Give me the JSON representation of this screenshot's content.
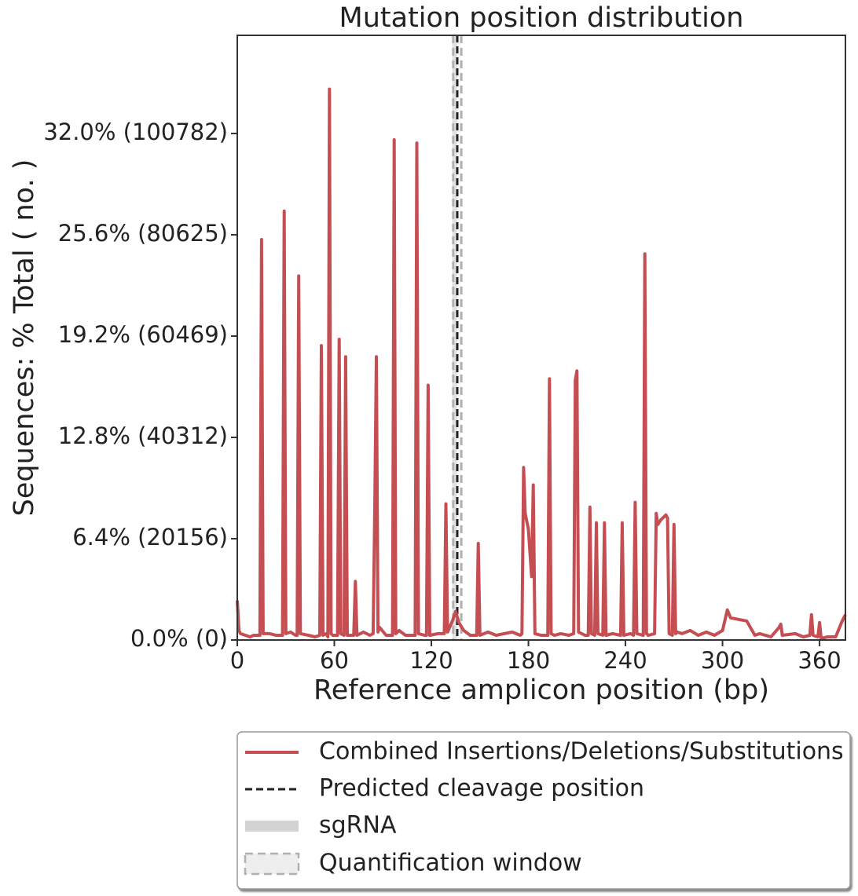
{
  "chart_data": {
    "type": "line",
    "title": "Mutation position distribution",
    "xlabel": "Reference amplicon position (bp)",
    "ylabel": "Sequences: % Total ( no. )",
    "x": [
      0,
      1,
      2,
      5,
      8,
      10,
      14,
      15,
      16,
      20,
      24,
      28,
      29,
      30,
      33,
      36,
      37,
      38,
      39,
      44,
      48,
      51,
      52,
      53,
      55,
      56,
      57,
      58,
      59,
      62,
      63,
      64,
      66,
      67,
      68,
      72,
      73,
      74,
      78,
      82,
      84,
      85,
      86,
      87,
      88,
      92,
      96,
      97,
      98,
      100,
      104,
      110,
      111,
      112,
      116,
      117,
      118,
      119,
      124,
      128,
      129,
      130,
      133,
      135,
      137,
      140,
      144,
      148,
      149,
      150,
      155,
      160,
      165,
      170,
      175,
      176,
      177,
      178,
      180,
      182,
      183,
      184,
      188,
      192,
      193,
      194,
      196,
      200,
      205,
      208,
      209,
      210,
      211,
      215,
      217,
      218,
      219,
      221,
      222,
      223,
      226,
      227,
      228,
      232,
      237,
      238,
      239,
      243,
      245,
      246,
      247,
      251,
      252,
      253,
      254,
      258,
      259,
      260,
      262,
      265,
      266,
      267,
      269,
      270,
      271,
      272,
      275,
      280,
      285,
      290,
      295,
      300,
      303,
      305,
      310,
      315,
      320,
      323,
      330,
      335,
      336,
      337,
      345,
      350,
      354,
      355,
      356,
      359,
      360,
      361,
      365,
      370,
      374,
      376
    ],
    "series": [
      {
        "name": "Combined Insertions/Deletions/Substitutions",
        "color": "#c44e52",
        "values": [
          2.5,
          0.6,
          0.4,
          0.3,
          0.2,
          0.3,
          0.3,
          25.3,
          0.4,
          0.4,
          0.3,
          0.3,
          27.1,
          0.4,
          0.5,
          0.3,
          0.3,
          23.0,
          0.4,
          0.3,
          0.2,
          0.3,
          18.6,
          0.3,
          0.4,
          0.2,
          34.8,
          0.4,
          0.3,
          0.3,
          19.0,
          0.4,
          0.3,
          17.9,
          0.3,
          0.3,
          3.7,
          0.3,
          0.5,
          0.3,
          0.4,
          8.3,
          17.9,
          0.5,
          0.8,
          0.3,
          0.3,
          31.6,
          0.4,
          0.6,
          0.3,
          0.3,
          31.4,
          0.4,
          0.3,
          0.3,
          16.1,
          0.3,
          0.4,
          0.4,
          8.6,
          0.5,
          1.2,
          1.8,
          1.1,
          0.6,
          0.3,
          0.3,
          6.1,
          0.3,
          0.5,
          0.3,
          0.4,
          0.5,
          0.3,
          0.4,
          10.9,
          8.0,
          7.0,
          4.0,
          9.8,
          0.4,
          0.3,
          0.3,
          16.5,
          0.4,
          0.3,
          0.4,
          0.3,
          0.4,
          16.4,
          17.0,
          0.5,
          0.3,
          0.3,
          8.4,
          0.4,
          0.3,
          7.4,
          0.4,
          0.3,
          7.4,
          0.3,
          0.4,
          0.3,
          7.4,
          0.3,
          0.4,
          0.3,
          8.7,
          0.4,
          0.3,
          24.4,
          0.4,
          0.3,
          0.4,
          8.0,
          7.3,
          7.6,
          7.9,
          7.7,
          0.4,
          0.3,
          7.3,
          0.4,
          0.5,
          0.4,
          0.6,
          0.3,
          0.5,
          0.3,
          0.6,
          1.9,
          1.4,
          1.3,
          1.2,
          0.3,
          0.4,
          0.2,
          0.8,
          1.0,
          0.3,
          0.4,
          0.2,
          0.3,
          1.6,
          0.3,
          0.2,
          1.1,
          0.1,
          0.2,
          0.2,
          1.2,
          1.6
        ]
      }
    ],
    "xlim": [
      0,
      376
    ],
    "ylim": [
      0,
      38.2
    ],
    "xticks": [
      0,
      60,
      120,
      180,
      240,
      300,
      360
    ],
    "yticks": [
      {
        "value": 0,
        "label": "0.0% (0)"
      },
      {
        "value": 6.4,
        "label": "6.4% (20156)"
      },
      {
        "value": 12.8,
        "label": "12.8% (40312)"
      },
      {
        "value": 19.2,
        "label": "19.2% (60469)"
      },
      {
        "value": 25.6,
        "label": "25.6% (80625)"
      },
      {
        "value": 32.0,
        "label": "32.0% (100782)"
      }
    ],
    "cleavage": {
      "name": "Predicted cleavage position",
      "x": 136,
      "color": "#222222"
    },
    "sgrna": {
      "name": "sgRNA",
      "range": [
        133,
        136
      ],
      "color": "#d3d3d3"
    },
    "quantification_window": {
      "name": "Quantification window",
      "range": [
        133.5,
        138.5
      ],
      "color": "#b0b0b0"
    }
  }
}
